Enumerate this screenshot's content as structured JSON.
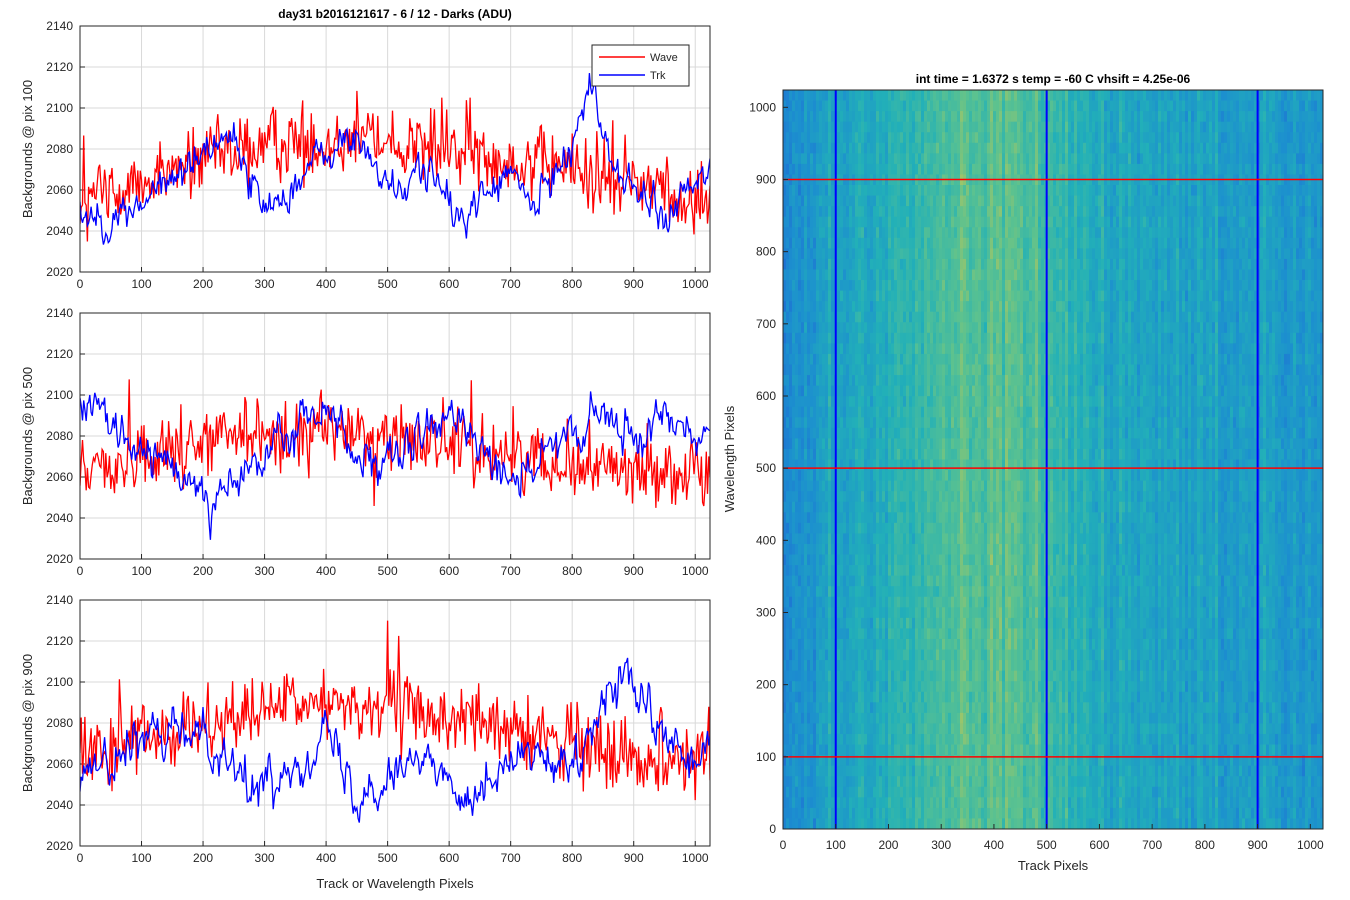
{
  "chart_data": [
    {
      "type": "line",
      "title": "day31 b2016121617 - 6 / 12 - Darks (ADU)",
      "xlabel": "",
      "ylabel": "Backgrounds @ pix 100",
      "xlim": [
        0,
        1024
      ],
      "ylim": [
        2020,
        2140
      ],
      "xticks": [
        0,
        100,
        200,
        300,
        400,
        500,
        600,
        700,
        800,
        900,
        1000
      ],
      "yticks": [
        2020,
        2040,
        2060,
        2080,
        2100,
        2120,
        2140
      ],
      "grid": true,
      "legend": "top-right",
      "series": [
        {
          "name": "Wave",
          "color": "#ff0000",
          "base": 2068,
          "trend": [
            [
              0,
              2055
            ],
            [
              300,
              2082
            ],
            [
              450,
              2085
            ],
            [
              600,
              2080
            ],
            [
              800,
              2070
            ],
            [
              1024,
              2055
            ]
          ],
          "noise": 16
        },
        {
          "name": "Trk",
          "color": "#0000ff",
          "base": 2060,
          "trend": [
            [
              0,
              2050
            ],
            [
              60,
              2045
            ],
            [
              150,
              2065
            ],
            [
              240,
              2090
            ],
            [
              300,
              2050
            ],
            [
              400,
              2078
            ],
            [
              450,
              2085
            ],
            [
              520,
              2055
            ],
            [
              560,
              2075
            ],
            [
              610,
              2045
            ],
            [
              700,
              2068
            ],
            [
              740,
              2050
            ],
            [
              800,
              2085
            ],
            [
              830,
              2110
            ],
            [
              870,
              2070
            ],
            [
              950,
              2045
            ],
            [
              1024,
              2070
            ]
          ],
          "noise": 6
        }
      ]
    },
    {
      "type": "line",
      "xlabel": "",
      "ylabel": "Backgrounds @ pix 500",
      "xlim": [
        0,
        1024
      ],
      "ylim": [
        2020,
        2140
      ],
      "xticks": [
        0,
        100,
        200,
        300,
        400,
        500,
        600,
        700,
        800,
        900,
        1000
      ],
      "yticks": [
        2020,
        2040,
        2060,
        2080,
        2100,
        2120,
        2140
      ],
      "grid": true,
      "series": [
        {
          "name": "Wave",
          "color": "#ff0000",
          "trend": [
            [
              0,
              2062
            ],
            [
              250,
              2080
            ],
            [
              420,
              2082
            ],
            [
              600,
              2075
            ],
            [
              800,
              2066
            ],
            [
              1024,
              2062
            ]
          ],
          "noise": 16
        },
        {
          "name": "Trk",
          "color": "#0000ff",
          "trend": [
            [
              0,
              2095
            ],
            [
              60,
              2080
            ],
            [
              140,
              2065
            ],
            [
              230,
              2050
            ],
            [
              320,
              2075
            ],
            [
              400,
              2095
            ],
            [
              480,
              2060
            ],
            [
              560,
              2080
            ],
            [
              620,
              2090
            ],
            [
              700,
              2060
            ],
            [
              760,
              2070
            ],
            [
              850,
              2090
            ],
            [
              900,
              2075
            ],
            [
              960,
              2095
            ],
            [
              1024,
              2080
            ]
          ],
          "noise": 7
        }
      ]
    },
    {
      "type": "line",
      "xlabel": "Track or Wavelength Pixels",
      "ylabel": "Backgrounds @ pix 900",
      "xlim": [
        0,
        1024
      ],
      "ylim": [
        2020,
        2140
      ],
      "xticks": [
        0,
        100,
        200,
        300,
        400,
        500,
        600,
        700,
        800,
        900,
        1000
      ],
      "yticks": [
        2020,
        2040,
        2060,
        2080,
        2100,
        2120,
        2140
      ],
      "grid": true,
      "series": [
        {
          "name": "Wave",
          "color": "#ff0000",
          "trend": [
            [
              0,
              2065
            ],
            [
              250,
              2082
            ],
            [
              400,
              2090
            ],
            [
              600,
              2082
            ],
            [
              800,
              2070
            ],
            [
              1024,
              2062
            ]
          ],
          "noise": 16
        },
        {
          "name": "Trk",
          "color": "#0000ff",
          "trend": [
            [
              0,
              2055
            ],
            [
              100,
              2070
            ],
            [
              200,
              2078
            ],
            [
              290,
              2045
            ],
            [
              400,
              2075
            ],
            [
              450,
              2045
            ],
            [
              540,
              2065
            ],
            [
              620,
              2045
            ],
            [
              720,
              2065
            ],
            [
              800,
              2055
            ],
            [
              880,
              2105
            ],
            [
              930,
              2080
            ],
            [
              1000,
              2055
            ],
            [
              1024,
              2070
            ]
          ],
          "noise": 7
        }
      ]
    },
    {
      "type": "heatmap",
      "title": "int time = 1.6372 s    temp = -60 C    vhsift = 4.25e-06",
      "xlabel": "Track Pixels",
      "ylabel": "Wavelength Pixels",
      "xlim": [
        0,
        1024
      ],
      "ylim": [
        0,
        1024
      ],
      "xticks": [
        0,
        100,
        200,
        300,
        400,
        500,
        600,
        700,
        800,
        900,
        1000
      ],
      "yticks": [
        0,
        100,
        200,
        300,
        400,
        500,
        600,
        700,
        800,
        900,
        1000
      ],
      "colormap": [
        "#1f5fd6",
        "#1c8fcf",
        "#22b0b8",
        "#5cc28f",
        "#b5c65c"
      ],
      "vertical_lines": [
        100,
        500,
        900
      ],
      "vertical_line_color": "#0000ff",
      "horizontal_lines": [
        100,
        500,
        900
      ],
      "horizontal_line_color": "#ff0000",
      "bright_band_center": 390
    }
  ]
}
